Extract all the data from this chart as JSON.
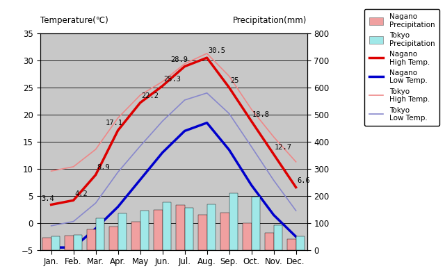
{
  "months": [
    "Jan.",
    "Feb.",
    "Mar.",
    "Apr.",
    "May",
    "Jun.",
    "Jul.",
    "Aug.",
    "Sep.",
    "Oct.",
    "Nov.",
    "Dec."
  ],
  "nagano_high_t": [
    3.4,
    4.2,
    8.9,
    17.1,
    22.2,
    25.3,
    28.9,
    30.5,
    25.0,
    18.8,
    12.7,
    6.6
  ],
  "nagano_low_t": [
    -4.5,
    -4.5,
    -1.0,
    3.0,
    8.0,
    13.0,
    17.0,
    18.5,
    13.5,
    7.0,
    1.5,
    -2.5
  ],
  "tokyo_high_t": [
    9.6,
    10.4,
    13.6,
    19.4,
    23.6,
    26.1,
    29.4,
    31.3,
    27.1,
    21.0,
    15.9,
    11.3
  ],
  "tokyo_low_t": [
    -0.5,
    0.3,
    3.7,
    9.4,
    14.2,
    18.8,
    22.7,
    24.0,
    20.2,
    14.1,
    7.9,
    2.3
  ],
  "nagano_precip_mm": [
    47,
    55,
    77,
    88,
    105,
    148,
    167,
    131,
    138,
    100,
    65,
    40
  ],
  "tokyo_precip_mm": [
    52,
    56,
    118,
    135,
    147,
    178,
    156,
    168,
    210,
    197,
    93,
    51
  ],
  "temp_color_nagano_high": "#dd0000",
  "temp_color_nagano_low": "#0000cc",
  "temp_color_tokyo_high": "#ee8888",
  "temp_color_tokyo_low": "#8888cc",
  "bar_color_nagano": "#f0a0a0",
  "bar_color_tokyo": "#a0e8e8",
  "bg_color": "#c8c8c8",
  "ylim_temp": [
    -5,
    35
  ],
  "ylim_precip": [
    0,
    800
  ],
  "title_left": "Temperature(℃)",
  "title_right": "Precipitation(mm)",
  "lw_nagano": 2.5,
  "lw_tokyo": 1.2
}
